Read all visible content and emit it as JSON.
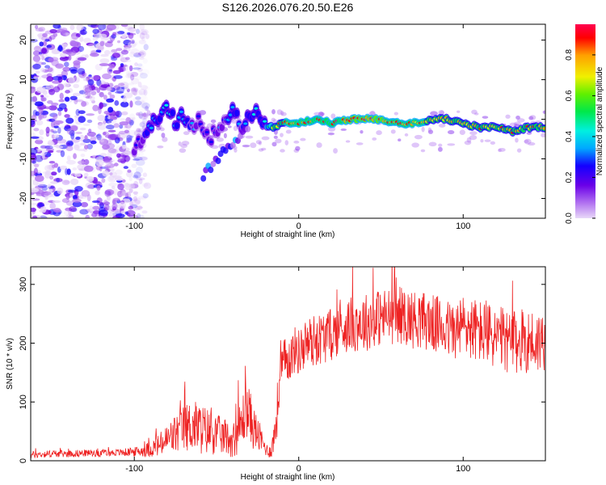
{
  "figure": {
    "title": "S126.2026.076.20.50.E26"
  },
  "chart_data": [
    {
      "type": "heatmap",
      "name": "spectrogram",
      "title": "S126.2026.076.20.50.E26",
      "xlabel": "Height of straight line (km)",
      "ylabel": "Frequency (Hz)",
      "xlim": [
        -163,
        150
      ],
      "ylim": [
        -25,
        24
      ],
      "x_ticks": [
        -100,
        0,
        100
      ],
      "x_tick_labels": [
        "-100",
        "0",
        "100"
      ],
      "y_ticks": [
        -20,
        -10,
        0,
        10,
        20
      ],
      "y_tick_labels": [
        "-20",
        "-10",
        "0",
        "10",
        "20"
      ],
      "grid": false,
      "description_points": {
        "noise_region_x": [
          -163,
          -95
        ],
        "ridge": [
          {
            "x": -100,
            "f": -7,
            "a": 0.3
          },
          {
            "x": -95,
            "f": -5,
            "a": 0.35
          },
          {
            "x": -90,
            "f": -2,
            "a": 0.4
          },
          {
            "x": -85,
            "f": 1,
            "a": 0.45
          },
          {
            "x": -80,
            "f": 3,
            "a": 0.45
          },
          {
            "x": -75,
            "f": -1,
            "a": 0.4
          },
          {
            "x": -70,
            "f": 1,
            "a": 0.4
          },
          {
            "x": -65,
            "f": -2,
            "a": 0.35
          },
          {
            "x": -60,
            "f": 0,
            "a": 0.35
          },
          {
            "x": -55,
            "f": -5,
            "a": 0.3
          },
          {
            "x": -50,
            "f": -3,
            "a": 0.3
          },
          {
            "x": -45,
            "f": -1,
            "a": 0.35
          },
          {
            "x": -40,
            "f": 2,
            "a": 0.4
          },
          {
            "x": -35,
            "f": -2,
            "a": 0.35
          },
          {
            "x": -30,
            "f": 1,
            "a": 0.4
          },
          {
            "x": -25,
            "f": 3,
            "a": 0.45
          },
          {
            "x": -20,
            "f": -2,
            "a": 0.5
          },
          {
            "x": -15,
            "f": -2,
            "a": 0.85
          },
          {
            "x": -10,
            "f": -1,
            "a": 0.85
          },
          {
            "x": -5,
            "f": -1,
            "a": 0.9
          },
          {
            "x": 0,
            "f": -1,
            "a": 0.9
          },
          {
            "x": 10,
            "f": 0,
            "a": 0.9
          },
          {
            "x": 20,
            "f": -1,
            "a": 0.9
          },
          {
            "x": 30,
            "f": 0,
            "a": 0.95
          },
          {
            "x": 40,
            "f": 0,
            "a": 0.95
          },
          {
            "x": 50,
            "f": 0,
            "a": 0.95
          },
          {
            "x": 60,
            "f": -1,
            "a": 0.9
          },
          {
            "x": 70,
            "f": -1,
            "a": 0.9
          },
          {
            "x": 80,
            "f": 0,
            "a": 0.85
          },
          {
            "x": 90,
            "f": 0,
            "a": 0.85
          },
          {
            "x": 100,
            "f": -1,
            "a": 0.85
          },
          {
            "x": 110,
            "f": -2,
            "a": 0.85
          },
          {
            "x": 120,
            "f": -2,
            "a": 0.85
          },
          {
            "x": 130,
            "f": -3,
            "a": 0.85
          },
          {
            "x": 140,
            "f": -2,
            "a": 0.85
          },
          {
            "x": 150,
            "f": -2,
            "a": 0.85
          }
        ]
      },
      "colorbar": {
        "label": "Normalized spectral amplitude",
        "range": [
          0.0,
          0.95
        ],
        "ticks": [
          0.0,
          0.2,
          0.4,
          0.6,
          0.8
        ],
        "tick_labels": [
          "0.0",
          "0.2",
          "0.4",
          "0.6",
          "0.8"
        ],
        "colors": [
          "#e8d8f8",
          "#b070f0",
          "#6a00e8",
          "#1400ff",
          "#00a8ff",
          "#00f0e0",
          "#00e84a",
          "#60f000",
          "#f0f000",
          "#ffa000",
          "#ff0000",
          "#ff0050"
        ]
      }
    },
    {
      "type": "line",
      "name": "snr",
      "xlabel": "Height of straight line (km)",
      "ylabel": "SNR (10 * v/v)",
      "xlim": [
        -163,
        150
      ],
      "ylim": [
        0,
        330
      ],
      "x_ticks": [
        -100,
        0,
        100
      ],
      "x_tick_labels": [
        "-100",
        "0",
        "100"
      ],
      "y_ticks": [
        0,
        100,
        200,
        300
      ],
      "y_tick_labels": [
        "0",
        "100",
        "200",
        "300"
      ],
      "grid": false,
      "color": "#ee2222",
      "series": [
        {
          "name": "SNR",
          "x": [
            -163,
            -150,
            -140,
            -130,
            -120,
            -110,
            -100,
            -95,
            -90,
            -85,
            -80,
            -75,
            -70,
            -65,
            -60,
            -55,
            -50,
            -45,
            -40,
            -35,
            -32,
            -30,
            -28,
            -25,
            -22,
            -20,
            -18,
            -16,
            -14,
            -12,
            -10,
            -8,
            -6,
            -4,
            -2,
            0,
            5,
            10,
            15,
            20,
            25,
            30,
            35,
            40,
            45,
            50,
            55,
            60,
            65,
            70,
            75,
            80,
            85,
            90,
            95,
            100,
            105,
            110,
            115,
            120,
            125,
            130,
            135,
            140,
            145,
            150
          ],
          "values": [
            10,
            12,
            12,
            13,
            13,
            14,
            15,
            17,
            20,
            26,
            35,
            45,
            55,
            60,
            55,
            50,
            45,
            40,
            35,
            60,
            90,
            80,
            60,
            45,
            30,
            20,
            15,
            25,
            60,
            120,
            160,
            170,
            175,
            180,
            190,
            185,
            200,
            205,
            210,
            215,
            225,
            230,
            235,
            235,
            240,
            245,
            245,
            250,
            245,
            240,
            240,
            235,
            230,
            225,
            220,
            230,
            225,
            220,
            215,
            210,
            205,
            200,
            200,
            205,
            200,
            210
          ],
          "noise_amplitude": [
            6,
            6,
            6,
            6,
            6,
            6,
            8,
            10,
            14,
            20,
            28,
            35,
            40,
            45,
            45,
            40,
            35,
            30,
            30,
            45,
            50,
            45,
            40,
            30,
            20,
            12,
            10,
            20,
            40,
            50,
            45,
            40,
            40,
            40,
            40,
            40,
            45,
            45,
            45,
            45,
            45,
            45,
            50,
            50,
            50,
            50,
            50,
            50,
            50,
            50,
            50,
            50,
            50,
            50,
            50,
            55,
            55,
            55,
            55,
            55,
            55,
            55,
            55,
            55,
            55,
            55
          ]
        }
      ]
    }
  ]
}
